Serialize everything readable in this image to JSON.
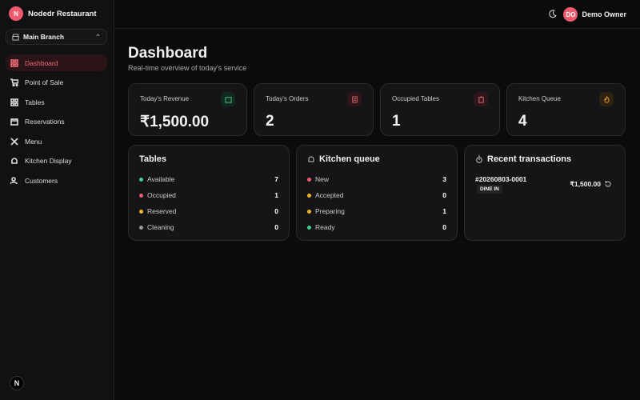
{
  "sidebar": {
    "brand": {
      "initial": "N",
      "name": "Nodedr Restaurant"
    },
    "branch": "Main Branch",
    "nav": [
      "Dashboard",
      "Point of Sale",
      "Tables",
      "Reservations",
      "Menu",
      "Kitchen Display",
      "Customers"
    ],
    "footer_initial": "N"
  },
  "header": {
    "user": {
      "initials": "DO",
      "name": "Demo Owner"
    }
  },
  "page": {
    "title": "Dashboard",
    "subtitle": "Real-time overview of today's service"
  },
  "stats": [
    {
      "label": "Today's Revenue",
      "value": "₹1,500.00"
    },
    {
      "label": "Today's Orders",
      "value": 2
    },
    {
      "label": "Occupied Tables",
      "value": 1
    },
    {
      "label": "Kitchen Queue",
      "value": 4
    }
  ],
  "panels": {
    "tables": {
      "title": "Tables",
      "rows": [
        {
          "label": "Available",
          "count": 7
        },
        {
          "label": "Occupied",
          "count": 1
        },
        {
          "label": "Reserved",
          "count": 0
        },
        {
          "label": "Cleaning",
          "count": 0
        }
      ]
    },
    "kitchen": {
      "title": "Kitchen queue",
      "rows": [
        {
          "label": "New",
          "count": 3
        },
        {
          "label": "Accepted",
          "count": 0
        },
        {
          "label": "Preparing",
          "count": 1
        },
        {
          "label": "Ready",
          "count": 0
        }
      ]
    },
    "transactions": {
      "title": "Recent transactions",
      "items": [
        {
          "id": "#20260803-0001",
          "tag": "DINE IN",
          "amount": "₹1,500.00"
        }
      ]
    }
  }
}
